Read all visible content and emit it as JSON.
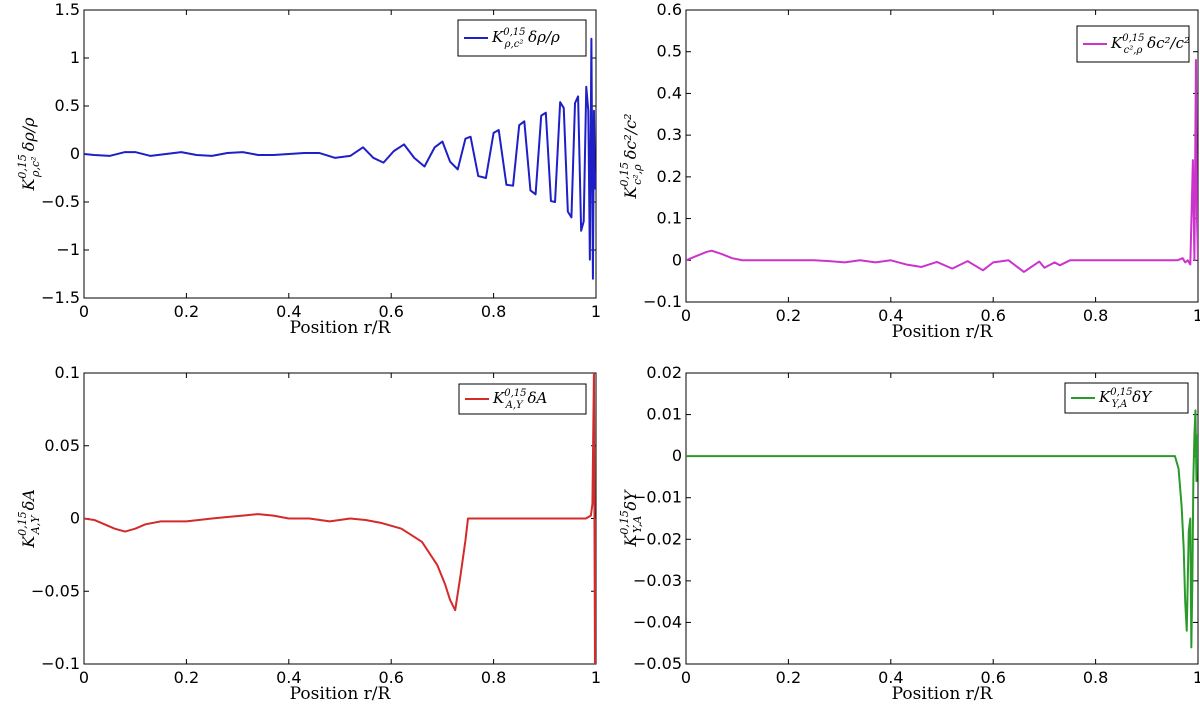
{
  "chart_data": [
    {
      "type": "line",
      "panel": "top-left",
      "xlabel": "Position r/R",
      "ylabel": "K^{0,15}_{ρ,c²} δρ/ρ",
      "xlim": [
        0,
        1
      ],
      "ylim": [
        -1.5,
        1.5
      ],
      "xticks": [
        "0",
        "0.2",
        "0.4",
        "0.6",
        "0.8",
        "1"
      ],
      "yticks": [
        "-1.5",
        "-1",
        "-0.5",
        "0",
        "0.5",
        "1",
        "1.5"
      ],
      "legend_position": "top-right",
      "series": [
        {
          "name": "K^{0,15}_{ρ,c²} δρ/ρ",
          "color": "#1f1fc8",
          "x": [
            0,
            0.02,
            0.05,
            0.08,
            0.1,
            0.13,
            0.16,
            0.19,
            0.22,
            0.25,
            0.28,
            0.31,
            0.34,
            0.37,
            0.4,
            0.43,
            0.46,
            0.49,
            0.52,
            0.545,
            0.565,
            0.585,
            0.605,
            0.625,
            0.645,
            0.665,
            0.685,
            0.7,
            0.715,
            0.73,
            0.745,
            0.755,
            0.77,
            0.785,
            0.8,
            0.81,
            0.825,
            0.838,
            0.85,
            0.86,
            0.872,
            0.882,
            0.893,
            0.902,
            0.912,
            0.92,
            0.93,
            0.937,
            0.945,
            0.952,
            0.959,
            0.965,
            0.971,
            0.976,
            0.981,
            0.985,
            0.988,
            0.991,
            0.994,
            0.996,
            0.998,
            1.0
          ],
          "y": [
            0,
            -0.01,
            -0.02,
            0.02,
            0.02,
            -0.02,
            0.0,
            0.02,
            -0.01,
            -0.02,
            0.01,
            0.02,
            -0.01,
            -0.01,
            0.0,
            0.01,
            0.01,
            -0.04,
            -0.02,
            0.07,
            -0.04,
            -0.09,
            0.03,
            0.1,
            -0.04,
            -0.13,
            0.07,
            0.13,
            -0.08,
            -0.16,
            0.16,
            0.18,
            -0.23,
            -0.25,
            0.22,
            0.25,
            -0.32,
            -0.33,
            0.3,
            0.34,
            -0.38,
            -0.42,
            0.4,
            0.43,
            -0.49,
            -0.5,
            0.54,
            0.48,
            -0.6,
            -0.66,
            0.53,
            0.6,
            -0.8,
            -0.7,
            0.7,
            0.45,
            -1.1,
            1.2,
            -1.3,
            0.45,
            -0.36,
            -0.2
          ]
        }
      ]
    },
    {
      "type": "line",
      "panel": "top-right",
      "xlabel": "Position r/R",
      "ylabel": "K^{0,15}_{c²,ρ} δc²/c²",
      "xlim": [
        0,
        1
      ],
      "ylim": [
        -0.1,
        0.6
      ],
      "xticks": [
        "0",
        "0.2",
        "0.4",
        "0.6",
        "0.8",
        "1"
      ],
      "yticks": [
        "-0.1",
        "0",
        "0.1",
        "0.2",
        "0.3",
        "0.4",
        "0.5",
        "0.6"
      ],
      "legend_position": "top-right",
      "series": [
        {
          "name": "K^{0,15}_{c²,ρ} δc²/c²",
          "color": "#cc33cc",
          "x": [
            0,
            0.02,
            0.04,
            0.05,
            0.07,
            0.09,
            0.11,
            0.13,
            0.16,
            0.2,
            0.25,
            0.28,
            0.31,
            0.34,
            0.37,
            0.4,
            0.43,
            0.46,
            0.49,
            0.52,
            0.55,
            0.58,
            0.6,
            0.63,
            0.66,
            0.69,
            0.7,
            0.72,
            0.73,
            0.75,
            0.8,
            0.85,
            0.9,
            0.94,
            0.96,
            0.97,
            0.975,
            0.98,
            0.985,
            0.99,
            0.993,
            0.996,
            0.998,
            1.0
          ],
          "y": [
            0,
            0.01,
            0.02,
            0.023,
            0.015,
            0.005,
            0.0,
            0.0,
            0.0,
            0.0,
            0.0,
            -0.002,
            -0.005,
            0.0,
            -0.005,
            0.0,
            -0.01,
            -0.016,
            -0.004,
            -0.02,
            -0.002,
            -0.024,
            -0.005,
            0.0,
            -0.028,
            -0.003,
            -0.018,
            -0.005,
            -0.012,
            0.0,
            0.0,
            0.0,
            0.0,
            0.0,
            0.0,
            0.005,
            -0.005,
            0.0,
            -0.01,
            0.24,
            0.0,
            0.48,
            0.1,
            0.0
          ]
        }
      ]
    },
    {
      "type": "line",
      "panel": "bottom-left",
      "xlabel": "Position r/R",
      "ylabel": "K^{0,15}_{A,Y} δA",
      "xlim": [
        0,
        1
      ],
      "ylim": [
        -0.1,
        0.1
      ],
      "xticks": [
        "0",
        "0.2",
        "0.4",
        "0.6",
        "0.8",
        "1"
      ],
      "yticks": [
        "-0.1",
        "-0.05",
        "0",
        "0.05",
        "0.1"
      ],
      "legend_position": "top-right",
      "series": [
        {
          "name": "K^{0,15}_{A,Y} δA",
          "color": "#d42a2a",
          "x": [
            0,
            0.02,
            0.04,
            0.06,
            0.08,
            0.1,
            0.12,
            0.15,
            0.2,
            0.25,
            0.28,
            0.31,
            0.34,
            0.37,
            0.4,
            0.44,
            0.48,
            0.52,
            0.55,
            0.58,
            0.62,
            0.66,
            0.69,
            0.705,
            0.715,
            0.725,
            0.735,
            0.745,
            0.75,
            0.755,
            0.8,
            0.85,
            0.9,
            0.95,
            0.98,
            0.99,
            0.993,
            0.996,
            0.998,
            1.0
          ],
          "y": [
            0,
            -0.001,
            -0.004,
            -0.007,
            -0.009,
            -0.007,
            -0.004,
            -0.002,
            -0.002,
            0.0,
            0.001,
            0.002,
            0.003,
            0.002,
            0.0,
            0.0,
            -0.002,
            0.0,
            -0.001,
            -0.003,
            -0.007,
            -0.016,
            -0.032,
            -0.045,
            -0.056,
            -0.063,
            -0.04,
            -0.015,
            0.0,
            0.0,
            0.0,
            0.0,
            0.0,
            0.0,
            0.0,
            0.002,
            0.01,
            0.1,
            -0.1,
            0.0
          ]
        }
      ]
    },
    {
      "type": "line",
      "panel": "bottom-right",
      "xlabel": "Position r/R",
      "ylabel": "K^{0,15}_{Y,A} δY",
      "xlim": [
        0,
        1
      ],
      "ylim": [
        -0.05,
        0.02
      ],
      "xticks": [
        "0",
        "0.2",
        "0.4",
        "0.6",
        "0.8",
        "1"
      ],
      "yticks": [
        "-0.05",
        "-0.04",
        "-0.03",
        "-0.02",
        "-0.01",
        "0",
        "0.01",
        "0.02"
      ],
      "legend_position": "top-right",
      "series": [
        {
          "name": "K^{0,15}_{Y,A} δY",
          "color": "#2a9a2a",
          "x": [
            0,
            0.2,
            0.4,
            0.6,
            0.8,
            0.9,
            0.94,
            0.955,
            0.962,
            0.968,
            0.972,
            0.975,
            0.978,
            0.98,
            0.982,
            0.985,
            0.987,
            0.989,
            0.991,
            0.993,
            0.995,
            0.997,
            0.999,
            1.0
          ],
          "y": [
            0,
            0,
            0,
            0,
            0,
            0,
            0,
            0.0,
            -0.003,
            -0.012,
            -0.022,
            -0.035,
            -0.042,
            -0.03,
            -0.018,
            -0.015,
            -0.046,
            -0.03,
            -0.005,
            0.005,
            0.011,
            -0.006,
            0.005,
            0.0
          ]
        }
      ]
    }
  ]
}
